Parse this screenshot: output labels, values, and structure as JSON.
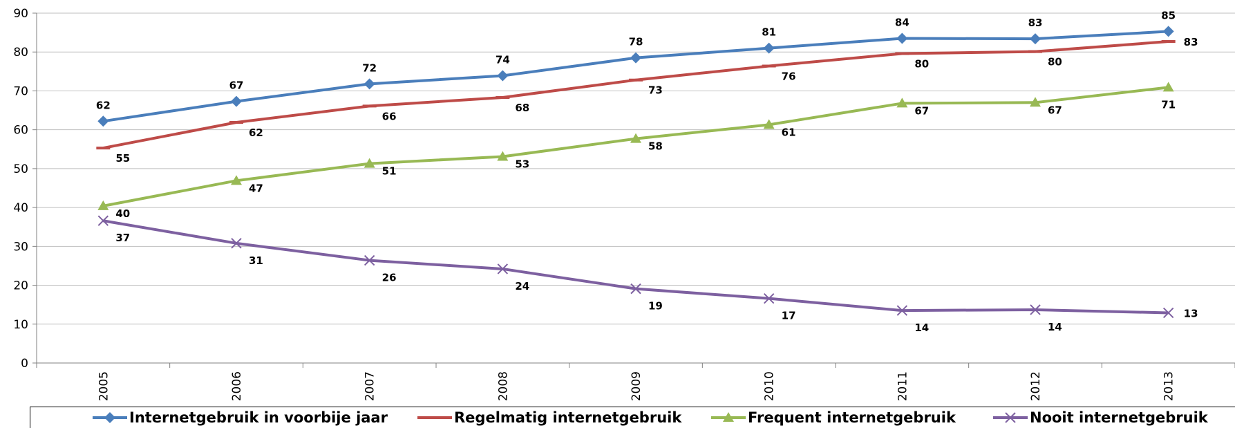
{
  "chart_data": {
    "type": "line",
    "title": "",
    "xlabel": "",
    "ylabel": "",
    "x": [
      "2005",
      "2006",
      "2007",
      "2008",
      "2009",
      "2010",
      "2011",
      "2012",
      "2013"
    ],
    "ylim": [
      0,
      90
    ],
    "yticks": [
      0,
      10,
      20,
      30,
      40,
      50,
      60,
      70,
      80,
      90
    ],
    "grid": true,
    "legend_position": "bottom",
    "series": [
      {
        "name": "Internetgebruik in voorbije jaar",
        "color": "#4a7ebb",
        "marker": "diamond",
        "values": [
          62.2,
          67.3,
          71.8,
          73.9,
          78.5,
          81.0,
          83.5,
          83.4,
          85.3
        ],
        "labels": [
          "62",
          "67",
          "72",
          "74",
          "78",
          "81",
          "84",
          "83",
          "85"
        ]
      },
      {
        "name": "Regelmatig internetgebruik",
        "color": "#be4b48",
        "marker": "dash",
        "values": [
          55.3,
          61.9,
          66.1,
          68.3,
          72.8,
          76.4,
          79.6,
          80.1,
          82.7
        ],
        "labels": [
          "55",
          "62",
          "66",
          "68",
          "73",
          "76",
          "80",
          "80",
          "83"
        ]
      },
      {
        "name": "Frequent internetgebruik",
        "color": "#98b954",
        "marker": "triangle",
        "values": [
          40.4,
          46.9,
          51.3,
          53.1,
          57.7,
          61.3,
          66.8,
          67.0,
          70.9
        ],
        "labels": [
          "40",
          "47",
          "51",
          "53",
          "58",
          "61",
          "67",
          "67",
          "71"
        ]
      },
      {
        "name": "Nooit internetgebruik",
        "color": "#7d60a0",
        "marker": "x",
        "values": [
          36.6,
          30.8,
          26.4,
          24.2,
          19.1,
          16.6,
          13.5,
          13.7,
          12.9
        ],
        "labels": [
          "37",
          "31",
          "26",
          "24",
          "19",
          "17",
          "14",
          "14",
          "13"
        ]
      }
    ]
  }
}
